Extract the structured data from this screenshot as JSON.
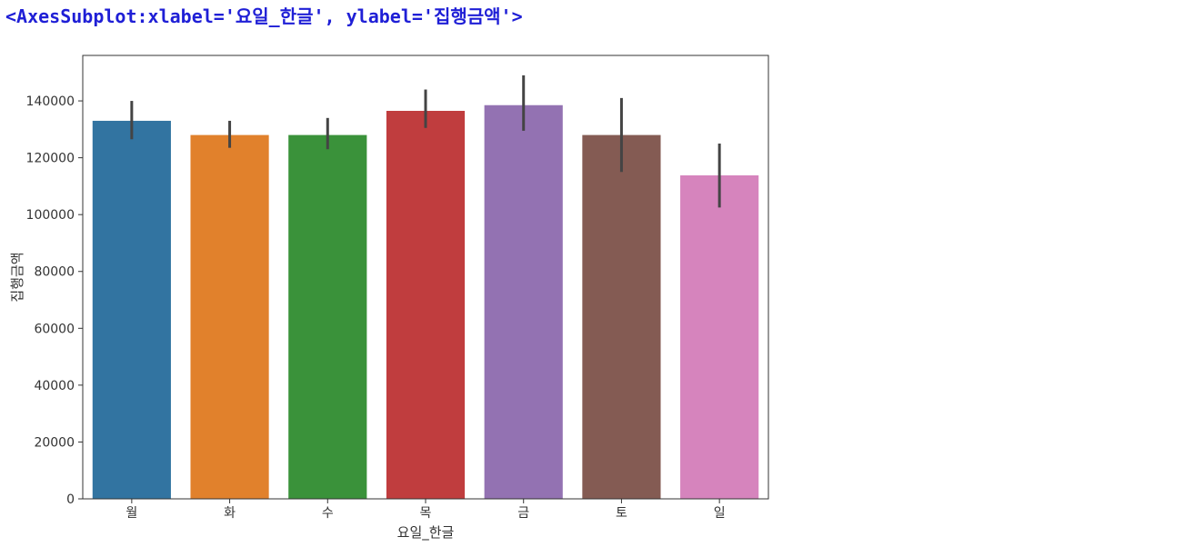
{
  "output_repr": "<AxesSubplot:xlabel='요일_한글', ylabel='집행금액'>",
  "chart_data": {
    "type": "bar",
    "xlabel": "요일_한글",
    "ylabel": "집행금액",
    "categories": [
      "월",
      "화",
      "수",
      "목",
      "금",
      "토",
      "일"
    ],
    "values": [
      133000,
      128000,
      128000,
      136500,
      138500,
      128000,
      113800
    ],
    "error_low": [
      126500,
      123500,
      123000,
      130500,
      129500,
      115000,
      102500
    ],
    "error_high": [
      140000,
      133000,
      134000,
      144000,
      149000,
      141000,
      125000
    ],
    "colors": [
      "#3274a1",
      "#e1812c",
      "#3a923a",
      "#c03d3e",
      "#9372b2",
      "#845b53",
      "#d684bd"
    ],
    "error_color": "#444444",
    "yticks": [
      0,
      20000,
      40000,
      60000,
      80000,
      100000,
      120000,
      140000
    ],
    "ylim": [
      0,
      156000
    ],
    "grid": false,
    "legend": "none"
  }
}
